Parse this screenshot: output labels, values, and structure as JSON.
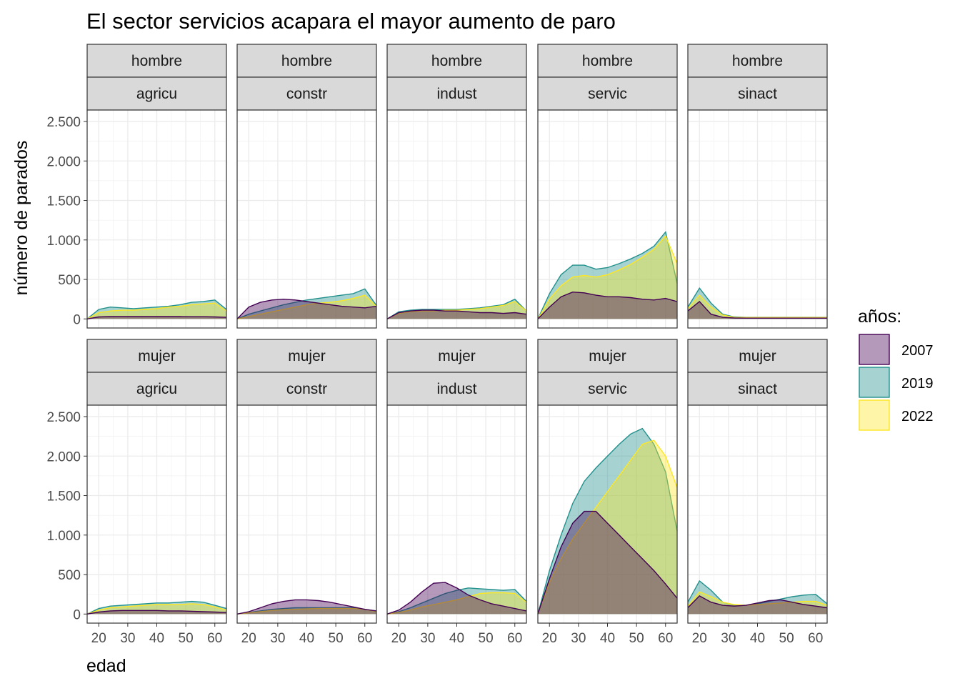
{
  "chart_data": {
    "type": "area",
    "title": "El sector servicios acapara el mayor aumento de paro",
    "xlabel": "edad",
    "ylabel": "número de parados",
    "xlim": [
      16,
      64
    ],
    "ylim": [
      0,
      2500
    ],
    "x_ticks": [
      20,
      30,
      40,
      50,
      60
    ],
    "y_ticks": [
      0,
      500,
      1000,
      1500,
      2000,
      2500
    ],
    "y_tick_labels": [
      "0",
      "500",
      "1.000",
      "1.500",
      "2.000",
      "2.500"
    ],
    "grid": true,
    "legend": {
      "title": "años:",
      "position": "right",
      "items": [
        {
          "label": "2007",
          "color": "#440154"
        },
        {
          "label": "2019",
          "color": "#21908C"
        },
        {
          "label": "2022",
          "color": "#FDE725"
        }
      ]
    },
    "row_labels": [
      "hombre",
      "mujer"
    ],
    "col_labels": [
      "agricu",
      "constr",
      "indust",
      "servic",
      "sinact"
    ],
    "x": [
      16,
      20,
      24,
      28,
      32,
      36,
      40,
      44,
      48,
      52,
      56,
      60,
      64
    ],
    "panels": [
      {
        "row": "hombre",
        "col": "agricu",
        "series": [
          {
            "name": "2007",
            "values": [
              0,
              25,
              30,
              30,
              30,
              30,
              30,
              30,
              30,
              28,
              28,
              25,
              20
            ]
          },
          {
            "name": "2019",
            "values": [
              0,
              120,
              150,
              140,
              130,
              140,
              150,
              160,
              180,
              210,
              220,
              240,
              120
            ]
          },
          {
            "name": "2022",
            "values": [
              0,
              80,
              100,
              110,
              110,
              120,
              130,
              150,
              160,
              180,
              190,
              200,
              100
            ]
          }
        ]
      },
      {
        "row": "hombre",
        "col": "constr",
        "series": [
          {
            "name": "2007",
            "values": [
              0,
              150,
              210,
              240,
              250,
              240,
              220,
              200,
              180,
              160,
              150,
              140,
              160
            ]
          },
          {
            "name": "2019",
            "values": [
              0,
              60,
              100,
              140,
              180,
              210,
              240,
              260,
              280,
              300,
              320,
              380,
              170
            ]
          },
          {
            "name": "2022",
            "values": [
              0,
              30,
              60,
              90,
              120,
              150,
              180,
              200,
              210,
              230,
              260,
              300,
              160
            ]
          }
        ]
      },
      {
        "row": "hombre",
        "col": "indust",
        "series": [
          {
            "name": "2007",
            "values": [
              0,
              80,
              100,
              110,
              110,
              100,
              100,
              90,
              80,
              80,
              70,
              80,
              60
            ]
          },
          {
            "name": "2019",
            "values": [
              0,
              90,
              110,
              120,
              120,
              120,
              120,
              130,
              140,
              160,
              180,
              250,
              100
            ]
          },
          {
            "name": "2022",
            "values": [
              0,
              70,
              90,
              100,
              100,
              110,
              110,
              120,
              130,
              150,
              170,
              220,
              100
            ]
          }
        ]
      },
      {
        "row": "hombre",
        "col": "servic",
        "series": [
          {
            "name": "2007",
            "values": [
              0,
              150,
              280,
              340,
              330,
              300,
              280,
              280,
              270,
              250,
              240,
              260,
              220
            ]
          },
          {
            "name": "2019",
            "values": [
              0,
              320,
              560,
              680,
              680,
              630,
              650,
              700,
              760,
              830,
              920,
              1100,
              450
            ]
          },
          {
            "name": "2022",
            "values": [
              0,
              250,
              420,
              530,
              550,
              530,
              560,
              620,
              690,
              780,
              880,
              1050,
              700
            ]
          }
        ]
      },
      {
        "row": "hombre",
        "col": "sinact",
        "series": [
          {
            "name": "2007",
            "values": [
              100,
              220,
              60,
              20,
              12,
              10,
              10,
              10,
              10,
              10,
              10,
              10,
              10
            ]
          },
          {
            "name": "2019",
            "values": [
              150,
              390,
              200,
              60,
              25,
              20,
              20,
              20,
              20,
              20,
              20,
              20,
              20
            ]
          },
          {
            "name": "2022",
            "values": [
              130,
              300,
              150,
              50,
              20,
              18,
              18,
              18,
              18,
              18,
              18,
              18,
              18
            ]
          }
        ]
      },
      {
        "row": "mujer",
        "col": "agricu",
        "series": [
          {
            "name": "2007",
            "values": [
              0,
              25,
              40,
              45,
              45,
              45,
              45,
              40,
              40,
              35,
              30,
              25,
              20
            ]
          },
          {
            "name": "2019",
            "values": [
              0,
              70,
              100,
              110,
              120,
              130,
              140,
              140,
              150,
              160,
              150,
              110,
              70
            ]
          },
          {
            "name": "2022",
            "values": [
              0,
              50,
              80,
              90,
              100,
              110,
              120,
              120,
              120,
              130,
              120,
              90,
              50
            ]
          }
        ]
      },
      {
        "row": "mujer",
        "col": "constr",
        "series": [
          {
            "name": "2007",
            "values": [
              0,
              30,
              80,
              130,
              160,
              180,
              180,
              170,
              150,
              120,
              90,
              60,
              40
            ]
          },
          {
            "name": "2019",
            "values": [
              0,
              20,
              40,
              60,
              70,
              80,
              80,
              80,
              80,
              80,
              80,
              60,
              40
            ]
          },
          {
            "name": "2022",
            "values": [
              0,
              15,
              30,
              45,
              55,
              60,
              65,
              70,
              70,
              70,
              70,
              60,
              30
            ]
          }
        ]
      },
      {
        "row": "mujer",
        "col": "indust",
        "series": [
          {
            "name": "2007",
            "values": [
              0,
              50,
              150,
              280,
              390,
              400,
              330,
              240,
              180,
              130,
              100,
              70,
              40
            ]
          },
          {
            "name": "2019",
            "values": [
              0,
              30,
              80,
              140,
              200,
              260,
              300,
              330,
              320,
              310,
              300,
              310,
              160
            ]
          },
          {
            "name": "2022",
            "values": [
              0,
              20,
              50,
              90,
              120,
              150,
              180,
              220,
              260,
              270,
              270,
              260,
              150
            ]
          }
        ]
      },
      {
        "row": "mujer",
        "col": "servic",
        "series": [
          {
            "name": "2007",
            "values": [
              0,
              450,
              850,
              1150,
              1300,
              1300,
              1150,
              1000,
              850,
              700,
              550,
              380,
              200
            ]
          },
          {
            "name": "2019",
            "values": [
              0,
              550,
              1000,
              1400,
              1680,
              1850,
              2000,
              2150,
              2280,
              2350,
              2150,
              1800,
              1050
            ]
          },
          {
            "name": "2022",
            "values": [
              0,
              400,
              700,
              950,
              1150,
              1350,
              1550,
              1750,
              1950,
              2150,
              2200,
              2000,
              1600
            ]
          }
        ]
      },
      {
        "row": "mujer",
        "col": "sinact",
        "series": [
          {
            "name": "2007",
            "values": [
              80,
              230,
              150,
              110,
              100,
              110,
              140,
              170,
              180,
              150,
              120,
              100,
              80
            ]
          },
          {
            "name": "2019",
            "values": [
              150,
              420,
              300,
              150,
              110,
              110,
              130,
              160,
              190,
              220,
              240,
              250,
              130
            ]
          },
          {
            "name": "2022",
            "values": [
              100,
              280,
              220,
              150,
              120,
              110,
              120,
              130,
              140,
              150,
              160,
              160,
              110
            ]
          }
        ]
      }
    ]
  }
}
